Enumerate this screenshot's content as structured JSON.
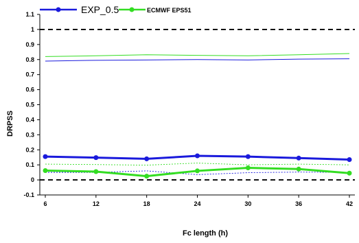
{
  "chart_data": {
    "type": "line",
    "xlabel": "Fc length (h)",
    "ylabel": "DRPSS",
    "x": [
      6,
      12,
      18,
      24,
      30,
      36,
      42
    ],
    "xlim": [
      6,
      42
    ],
    "ylim": [
      -0.1,
      1.1
    ],
    "y_ticks": [
      "-0.1",
      "0",
      "0.1",
      "0.2",
      "0.3",
      "0.4",
      "0.5",
      "0.6",
      "0.7",
      "0.8",
      "0.9",
      "1",
      "1.1"
    ],
    "x_ticks": [
      "6",
      "12",
      "18",
      "24",
      "30",
      "36",
      "42"
    ],
    "reference_lines": [
      0,
      1
    ],
    "legend_position": "top",
    "series": [
      {
        "name": "EXP_0.5",
        "color": "#1a1adc",
        "values": [
          0.155,
          0.148,
          0.14,
          0.16,
          0.155,
          0.145,
          0.135
        ],
        "upper": [
          0.79,
          0.795,
          0.797,
          0.8,
          0.797,
          0.803,
          0.805
        ],
        "lower": [
          0.05,
          0.05,
          0.06,
          0.035,
          0.048,
          0.052,
          0.05
        ]
      },
      {
        "name": "ECMWF EPS51",
        "color": "#33dd22",
        "values": [
          0.062,
          0.055,
          0.025,
          0.06,
          0.08,
          0.072,
          0.045
        ],
        "upper": [
          0.82,
          0.825,
          0.832,
          0.828,
          0.825,
          0.832,
          0.84
        ],
        "lower": [
          0.105,
          0.102,
          0.098,
          0.112,
          0.1,
          0.105,
          0.1
        ]
      }
    ]
  }
}
